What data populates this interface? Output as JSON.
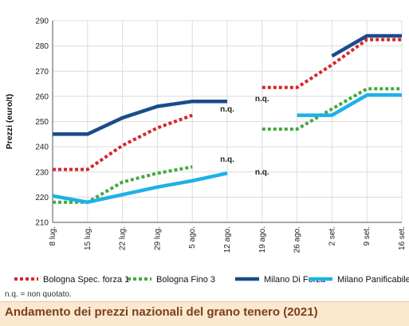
{
  "chart_data": {
    "type": "line",
    "title": "Andamento dei prezzi nazionali del grano tenero (2021)",
    "ylabel": "Prezzi (euro/t)",
    "xlabel": "",
    "ylim": [
      210,
      290
    ],
    "yticks": [
      210,
      220,
      230,
      240,
      250,
      260,
      270,
      280,
      290
    ],
    "categories": [
      "8 lug.",
      "15 lug.",
      "22 lug.",
      "29 lug.",
      "5 ago.",
      "12 ago.",
      "19 ago.",
      "26 ago.",
      "2 set.",
      "9 set.",
      "16 set."
    ],
    "grid": true,
    "legend_position": "bottom",
    "series": [
      {
        "name": "Bologna Spec. forza 1",
        "color": "#d7262e",
        "style": "dotted",
        "values": [
          231,
          231,
          240.5,
          247.5,
          252.5,
          null,
          263.5,
          263.5,
          272.5,
          282.5,
          282.5
        ]
      },
      {
        "name": "Bologna Fino 3",
        "color": "#44a93f",
        "style": "dotted",
        "values": [
          218,
          218,
          226,
          229.5,
          232,
          null,
          247,
          247,
          255,
          263,
          263
        ]
      },
      {
        "name": "Milano Di Forza",
        "color": "#1a4b8c",
        "style": "solid",
        "values": [
          245,
          245,
          251.5,
          256,
          258,
          258,
          null,
          null,
          276,
          284,
          284
        ]
      },
      {
        "name": "Milano Panificabile",
        "color": "#1eb1e7",
        "style": "solid",
        "values": [
          220.5,
          218,
          221,
          224,
          226.5,
          229.5,
          null,
          252.5,
          252.5,
          260.5,
          260.5
        ]
      }
    ],
    "annotations": [
      {
        "text": "n.q.",
        "x": "12 ago.",
        "y": 254
      },
      {
        "text": "n.q.",
        "x": "19 ago.",
        "y": 258
      },
      {
        "text": "n.q.",
        "x": "12 ago.",
        "y": 234
      },
      {
        "text": "n.q.",
        "x": "19 ago.",
        "y": 229
      }
    ],
    "footnote": "n.q. = non quotato."
  }
}
